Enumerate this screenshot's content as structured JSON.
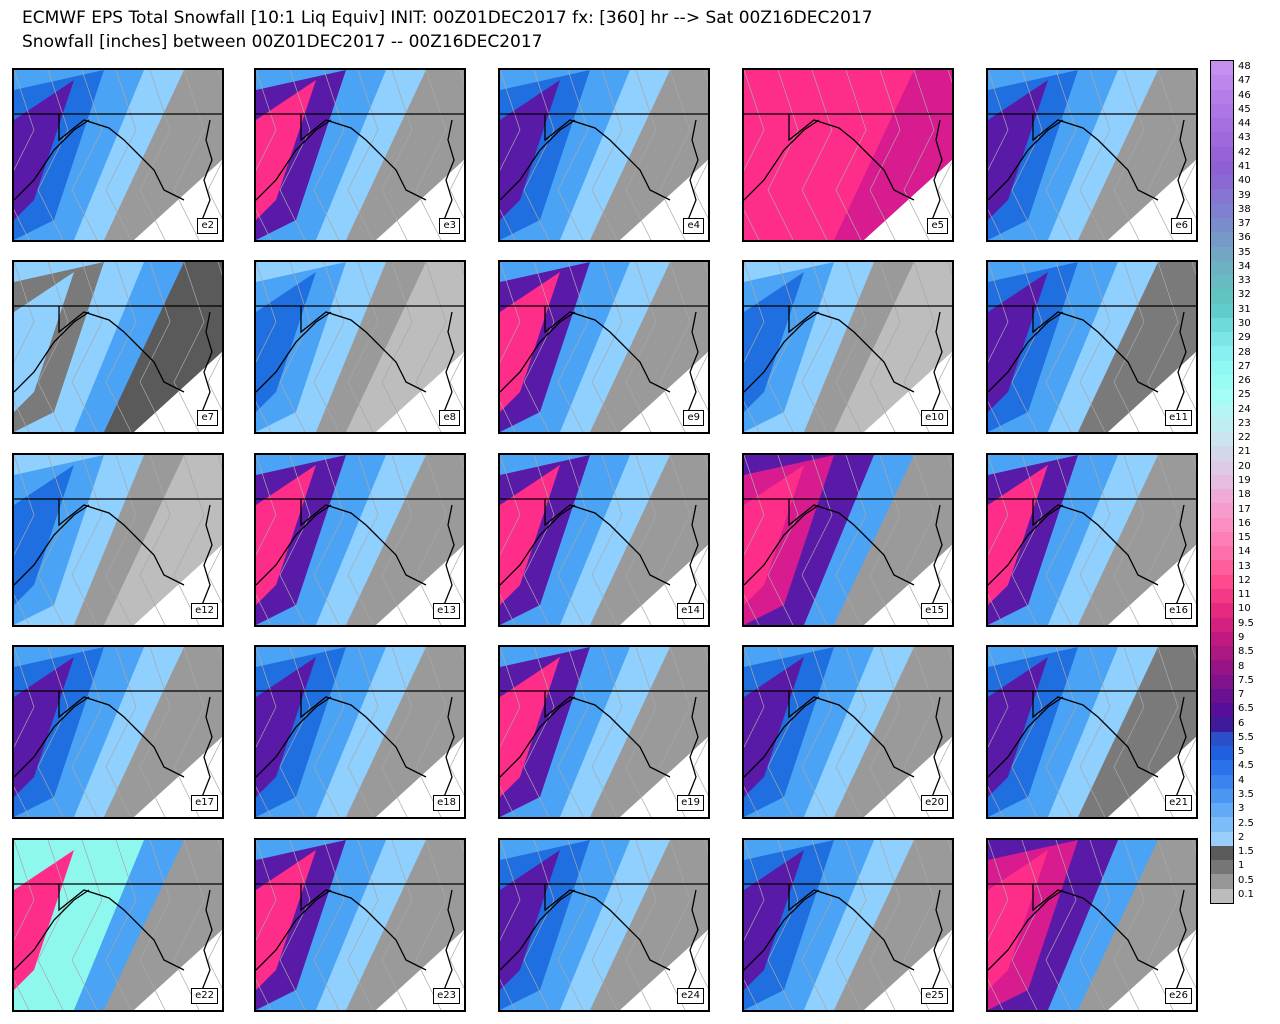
{
  "header": {
    "title_line1": "ECMWF EPS Total Snowfall [10:1 Liq Equiv] INIT: 00Z01DEC2017 fx: [360] hr --> Sat 00Z16DEC2017",
    "title_line2": "Snowfall [inches] between 00Z01DEC2017 -- 00Z16DEC2017"
  },
  "colors": {
    "white": "#ffffff",
    "gray_light": "#bdbdbd",
    "gray_mid": "#9a9a9a",
    "gray_dark": "#7a7a7a",
    "gray_darker": "#5a5a5a",
    "blue_light": "#8fd0ff",
    "blue_mid": "#4aa3f5",
    "blue_dark": "#1f6fe0",
    "purple": "#5a1aa8",
    "magenta": "#d81b8f",
    "pink": "#ff2d8a",
    "cyan": "#8ff8ee"
  },
  "panels": [
    {
      "label": "e2",
      "scheme": "west_blue"
    },
    {
      "label": "e3",
      "scheme": "west_pink"
    },
    {
      "label": "e4",
      "scheme": "west_purple"
    },
    {
      "label": "e5",
      "scheme": "all_pink"
    },
    {
      "label": "e6",
      "scheme": "west_blue"
    },
    {
      "label": "e7",
      "scheme": "gray_ring"
    },
    {
      "label": "e8",
      "scheme": "gray_blue"
    },
    {
      "label": "e9",
      "scheme": "west_pink"
    },
    {
      "label": "e10",
      "scheme": "gray_blue"
    },
    {
      "label": "e11",
      "scheme": "blue_wide"
    },
    {
      "label": "e12",
      "scheme": "gray_blue"
    },
    {
      "label": "e13",
      "scheme": "west_pink"
    },
    {
      "label": "e14",
      "scheme": "west_pink_big"
    },
    {
      "label": "e15",
      "scheme": "pink_big"
    },
    {
      "label": "e16",
      "scheme": "west_pink_big"
    },
    {
      "label": "e17",
      "scheme": "west_blue"
    },
    {
      "label": "e18",
      "scheme": "west_purple"
    },
    {
      "label": "e19",
      "scheme": "west_pink_big"
    },
    {
      "label": "e20",
      "scheme": "west_purple"
    },
    {
      "label": "e21",
      "scheme": "blue_wide"
    },
    {
      "label": "e22",
      "scheme": "cyan_pink"
    },
    {
      "label": "e23",
      "scheme": "west_pink"
    },
    {
      "label": "e24",
      "scheme": "west_purple"
    },
    {
      "label": "e25",
      "scheme": "west_blue"
    },
    {
      "label": "e26",
      "scheme": "pink_big"
    }
  ],
  "legend": {
    "labels": [
      "48",
      "47",
      "46",
      "45",
      "44",
      "43",
      "42",
      "41",
      "40",
      "39",
      "38",
      "37",
      "36",
      "35",
      "34",
      "33",
      "32",
      "31",
      "30",
      "29",
      "28",
      "27",
      "26",
      "25",
      "24",
      "23",
      "22",
      "21",
      "20",
      "19",
      "18",
      "17",
      "16",
      "15",
      "14",
      "13",
      "12",
      "11",
      "10",
      "9.5",
      "9",
      "8.5",
      "8",
      "7.5",
      "7",
      "6.5",
      "6",
      "5.5",
      "5",
      "4.5",
      "4",
      "3.5",
      "3",
      "2.5",
      "2",
      "1.5",
      "1",
      "0.5",
      "0.1"
    ],
    "colors": [
      "#c58ff0",
      "#bd86ec",
      "#b57de8",
      "#ad76e4",
      "#a56fe0",
      "#9d69dc",
      "#9563d7",
      "#8e60d2",
      "#8a6ad2",
      "#8675d2",
      "#8080d0",
      "#7a8ccc",
      "#7699c8",
      "#72a6c4",
      "#6cb2c2",
      "#66bcc0",
      "#60c4c0",
      "#62cccc",
      "#70dada",
      "#7ce6e6",
      "#88f0ee",
      "#90f8f2",
      "#98fcf4",
      "#a4fcf6",
      "#b4f6f4",
      "#c0eef0",
      "#cce4ee",
      "#d4d6ea",
      "#dccae6",
      "#e6bce0",
      "#f0aad6",
      "#f69ccc",
      "#fa8ec2",
      "#fc80b6",
      "#fd70aa",
      "#fe5e9c",
      "#ff4a8e",
      "#f33a84",
      "#e52a80",
      "#d4207f",
      "#c01a80",
      "#ac1782",
      "#961486",
      "#80128c",
      "#6c1092",
      "#580e98",
      "#3e1b9c",
      "#2a4fc8",
      "#2060e0",
      "#2a72ea",
      "#3a84ef",
      "#4c96f3",
      "#62a9f6",
      "#7cbcf9",
      "#98cdfc",
      "#5a5a5a",
      "#767676",
      "#969696",
      "#bcbcbc"
    ]
  }
}
